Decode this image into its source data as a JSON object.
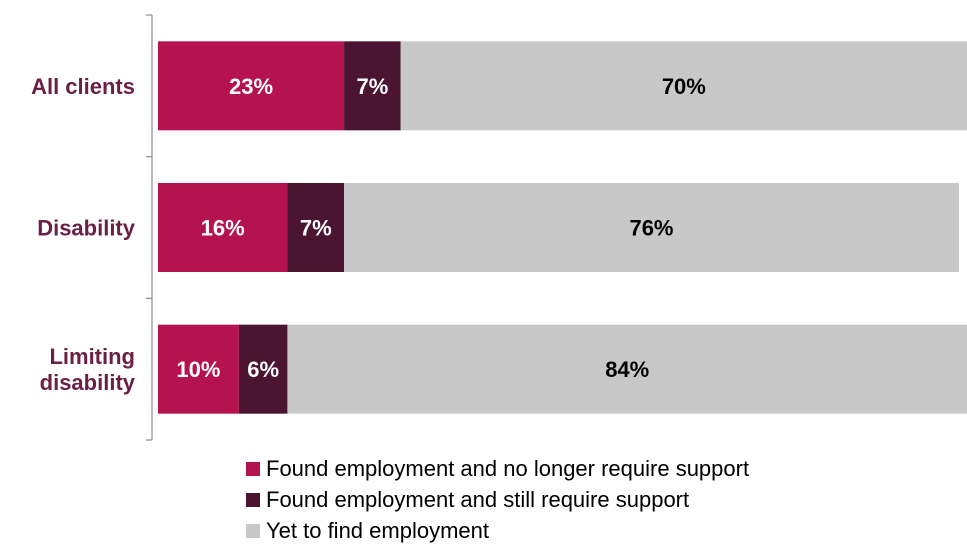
{
  "chart_data": {
    "type": "bar",
    "orientation": "horizontal",
    "stacked": true,
    "categories": [
      "All clients",
      "Disability",
      "Limiting disability"
    ],
    "category_lines": [
      [
        "All clients"
      ],
      [
        "Disability"
      ],
      [
        "Limiting",
        "disability"
      ]
    ],
    "series": [
      {
        "name": "Found employment and no longer require support",
        "color": "#b5134f",
        "label_color": "#ffffff",
        "values": [
          23,
          16,
          10
        ]
      },
      {
        "name": "Found employment and still require support",
        "color": "#4b1430",
        "label_color": "#ffffff",
        "values": [
          7,
          7,
          6
        ]
      },
      {
        "name": "Yet to find employment",
        "color": "#c8c8c8",
        "label_color": "#000000",
        "values": [
          70,
          76,
          84
        ]
      }
    ],
    "value_labels": [
      [
        "23%",
        "7%",
        "70%"
      ],
      [
        "16%",
        "7%",
        "76%"
      ],
      [
        "10%",
        "6%",
        "84%"
      ]
    ],
    "xlim": [
      0,
      100
    ],
    "grid": false,
    "legend_position": "bottom"
  }
}
